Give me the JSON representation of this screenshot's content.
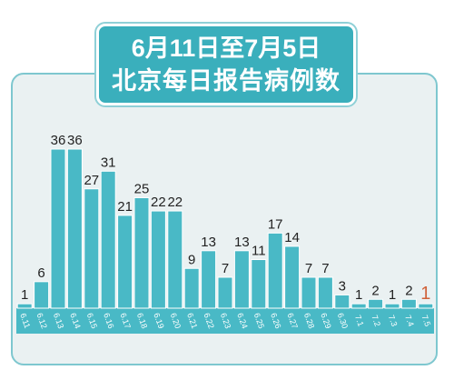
{
  "title": {
    "line1": "6月11日至7月5日",
    "line2": "北京每日报告病例数"
  },
  "colors": {
    "bar": "#49b9c6",
    "bar_border": "#ffffff",
    "highlight_label": "#d0623a",
    "axis_band": "#49b9c6",
    "panel_bg": "#eaf1f2",
    "title_bg": "#3aafbc"
  },
  "chart_data": {
    "type": "bar",
    "categories": [
      "6.11",
      "6.12",
      "6.13",
      "6.14",
      "6.15",
      "6.16",
      "6.17",
      "6.18",
      "6.19",
      "6.20",
      "6.21",
      "6.22",
      "6.23",
      "6.24",
      "6.25",
      "6.26",
      "6.27",
      "6.28",
      "6.29",
      "6.30",
      "7.1",
      "7.2",
      "7.3",
      "7.4",
      "7.5"
    ],
    "values": [
      1,
      6,
      36,
      36,
      27,
      31,
      21,
      25,
      22,
      22,
      9,
      13,
      7,
      13,
      11,
      17,
      14,
      7,
      7,
      3,
      1,
      2,
      1,
      2,
      1
    ],
    "highlight_index": 24,
    "title": "6月11日至7月5日 北京每日报告病例数",
    "xlabel": "",
    "ylabel": "",
    "ylim": [
      0,
      40
    ],
    "grid": false
  }
}
